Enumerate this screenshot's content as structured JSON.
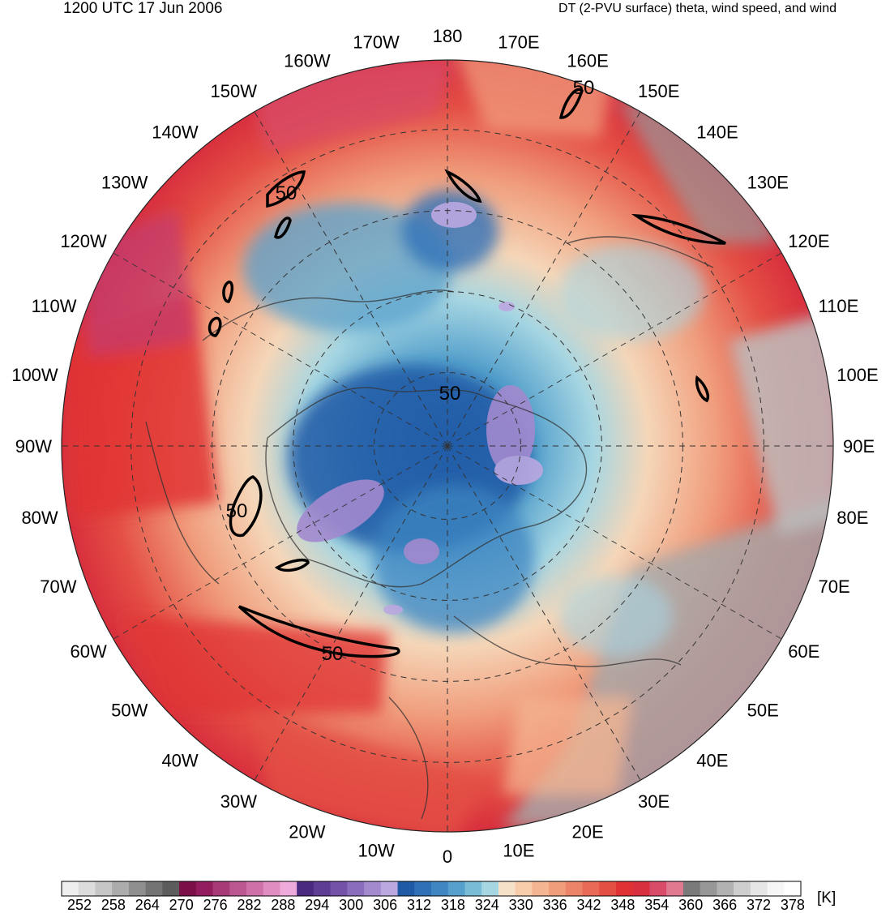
{
  "header": {
    "valid_time": "1200 UTC 17 Jun 2006",
    "field_description": "DT (2-PVU surface) theta, wind speed, and wind"
  },
  "map": {
    "projection": "north-polar-stereographic",
    "longitude_labels": [
      "180",
      "170E",
      "160E",
      "150E",
      "140E",
      "130E",
      "120E",
      "110E",
      "100E",
      "90E",
      "80E",
      "70E",
      "60E",
      "50E",
      "40E",
      "30E",
      "20E",
      "10E",
      "0",
      "10W",
      "20W",
      "30W",
      "40W",
      "50W",
      "60W",
      "70W",
      "80W",
      "90W",
      "100W",
      "110W",
      "120W",
      "130W",
      "140W",
      "150W",
      "160W",
      "170W"
    ],
    "wind_speed_contour": {
      "value": 50,
      "label": "50",
      "color": "#000000"
    },
    "contour_labels": [
      "50",
      "50",
      "50",
      "50",
      "50"
    ]
  },
  "colorbar": {
    "unit": "[K]",
    "tick_labels": [
      "252",
      "258",
      "264",
      "270",
      "276",
      "282",
      "288",
      "294",
      "300",
      "306",
      "312",
      "318",
      "324",
      "330",
      "336",
      "342",
      "348",
      "354",
      "360",
      "366",
      "372",
      "378"
    ],
    "colors": [
      "#eeeeee",
      "#dcdcdc",
      "#c6c6c6",
      "#acacac",
      "#8f8f8f",
      "#747474",
      "#5c5c5c",
      "#7b1048",
      "#921c5e",
      "#a83a78",
      "#bc5691",
      "#d070a9",
      "#e08dc2",
      "#eeaadb",
      "#4a2a80",
      "#5e3d94",
      "#7352a8",
      "#8a6dbc",
      "#a38acf",
      "#bca8e0",
      "#1f5aa6",
      "#2f70b6",
      "#3f86c2",
      "#55a0cc",
      "#78bcd6",
      "#a6d6e2",
      "#f5e0c8",
      "#f7ccaa",
      "#f4b592",
      "#f09d7c",
      "#ec8468",
      "#e86a56",
      "#e44f44",
      "#e03234",
      "#d8303e",
      "#d84c6a",
      "#e07a90",
      "#7a7a7a",
      "#969696",
      "#b2b2b2",
      "#cecece",
      "#e6e6e6",
      "#f6f6f6",
      "#ffffff"
    ]
  }
}
